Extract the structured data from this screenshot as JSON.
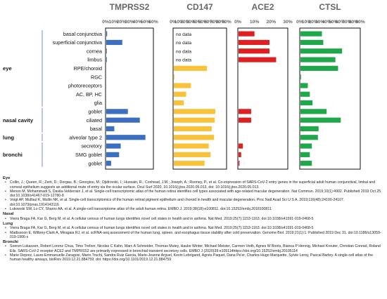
{
  "chart_data": [
    {
      "type": "bar",
      "title": "TMPRSS2",
      "xlim": [
        0,
        60
      ],
      "ticks": [
        "0%",
        "10%",
        "20%",
        "30%",
        "40%",
        "50%",
        "60%"
      ],
      "color": "#3c6fc0",
      "categories": [
        "basal conjunctiva",
        "superficial conjunctiva",
        "cornea",
        "limbus",
        "RPE/choroid",
        "RGC",
        "photoreceptors",
        "AC, BP, HC",
        "glia",
        "goblet",
        "ciliated",
        "basal",
        "alveolar type 2",
        "secretory",
        "SMG goblet",
        "goblet"
      ],
      "values": [
        2,
        21,
        1,
        1,
        0,
        0,
        0,
        0,
        0,
        28,
        43,
        11,
        50,
        19,
        17,
        7
      ],
      "labels": [
        "",
        "",
        "",
        "",
        "",
        "",
        "",
        "",
        "",
        "",
        "",
        "",
        "",
        "",
        "",
        ""
      ]
    },
    {
      "type": "bar",
      "title": "CD147",
      "xlim": [
        0,
        90
      ],
      "ticks": [
        "0%",
        "10%",
        "20%",
        "30%",
        "40%",
        "50%",
        "60%",
        "70%",
        "80%",
        "90%"
      ],
      "color": "#f8c23a",
      "categories": [
        "basal conjunctiva",
        "superficial conjunctiva",
        "cornea",
        "limbus",
        "RPE/choroid",
        "RGC",
        "photoreceptors",
        "AC, BP, HC",
        "glia",
        "goblet",
        "ciliated",
        "basal",
        "alveolar type 2",
        "secretory",
        "SMG goblet",
        "goblet"
      ],
      "values": [
        0,
        0,
        0,
        0,
        57,
        2,
        30,
        22,
        18,
        71,
        70,
        65,
        69,
        60,
        63,
        53
      ],
      "labels": [
        "no data",
        "no data",
        "no data",
        "no data",
        "",
        "",
        "",
        "",
        "",
        "",
        "",
        "",
        "",
        "",
        "",
        ""
      ]
    },
    {
      "type": "bar",
      "title": "ACE2",
      "xlim": [
        0,
        30
      ],
      "ticks": [
        "0%",
        "10%",
        "20%",
        "30%"
      ],
      "color": "#e02020",
      "categories": [
        "basal conjunctiva",
        "superficial conjunctiva",
        "cornea",
        "limbus",
        "RPE/choroid",
        "RGC",
        "photoreceptors",
        "AC, BP, HC",
        "glia",
        "goblet",
        "ciliated",
        "basal",
        "alveolar type 2",
        "secretory",
        "SMG goblet",
        "goblet"
      ],
      "values": [
        10,
        19,
        19,
        23,
        0,
        0,
        0,
        0,
        0,
        8,
        8,
        0,
        0,
        3,
        2,
        1
      ],
      "labels": [
        "",
        "",
        "",
        "",
        "",
        "",
        "",
        "",
        "",
        "",
        "",
        "",
        "",
        "",
        "",
        ""
      ]
    },
    {
      "type": "bar",
      "title": "CTSL",
      "xlim": [
        0,
        90
      ],
      "ticks": [
        "0%",
        "10%",
        "20%",
        "30%",
        "40%",
        "50%",
        "60%",
        "70%",
        "80%",
        "90%"
      ],
      "color": "#1ea84a",
      "categories": [
        "basal conjunctiva",
        "superficial conjunctiva",
        "cornea",
        "limbus",
        "RPE/choroid",
        "RGC",
        "photoreceptors",
        "AC, BP, HC",
        "glia",
        "goblet",
        "ciliated",
        "basal",
        "alveolar type 2",
        "secretory",
        "SMG goblet",
        "goblet"
      ],
      "values": [
        33,
        35,
        63,
        53,
        57,
        2,
        12,
        15,
        19,
        40,
        61,
        28,
        27,
        18,
        15,
        18
      ],
      "labels": [
        "",
        "",
        "",
        "",
        "",
        "",
        "",
        "",
        "",
        "",
        "",
        "",
        "",
        "",
        "",
        ""
      ]
    }
  ],
  "groups": [
    {
      "label": "eye",
      "rows": [
        0,
        8
      ]
    },
    {
      "label": "nasal cavity",
      "rows": [
        9,
        11
      ]
    },
    {
      "label": "lung",
      "rows": [
        12,
        12
      ]
    },
    {
      "label": "bronchi",
      "rows": [
        13,
        15
      ]
    }
  ],
  "refs": [
    {
      "section": "Eye",
      "items": [
        "Collin, J.; Queen, R.; Zerti, D.; Dorgau, B.; Georgiou, M.; Djidrovski, I.; Hussain, R.; Coxhead, J.M.; Joseph, A.; Rooney, P., et al. Co-expression of SARS-CoV-2 entry genes in the superficial adult human conjunctival, limbal and corneal epithelium suggests an additional route of entry via the ocular surface. Ocul Surf 2020, 10.1016/j.jtos.2020.05.013, doi: 10.1016/j.jtos.2020.05.013.",
        "Menon M, Mohammadi S, Davila-Velderrain J, et al. Single-cell transcriptomic atlas of the human retina identifies cell types associated with age-related macular degeneration. Nat Commun. 2019;10(1):4902. Published 2019 Oct 25. doi:10.1038/s41467-019-12780-8",
        "Voigt AP, Mulfaul K, Mullin NK, et al. Single-cell transcriptomics of the human retinal pigment epithelium and choroid in health and macular degeneration. Proc Natl Acad Sci U S A. 2019;116(48):24100-24107. doi:10.1073/pnas.1914143116",
        "Lukowski SW, Lo CY, Sharov AA, et al. A single-cell transcriptome atlas of the adult human retina. EMBO J. 2019;38(18):e100811. doi:10.15252/embj.2018100811"
      ]
    },
    {
      "section": "Nasal",
      "items": [
        "Vieira Braga FA, Kar G, Berg M, et al. A cellular census of human lungs identifies novel cell states in health and in asthma. Nat Med. 2019;25(7):1153-1163. doi:10.1038/s41591-019-0468-5"
      ]
    },
    {
      "section": "Lung",
      "items": [
        "Vieira Braga FA, Kar G, Berg M, et al. A cellular census of human lungs identifies novel cell states in health and in asthma. Nat Med. 2019;25(7):1153-1163. doi:10.1038/s41591-019-0468-5",
        "Madissoon E, Wilbrey-Clark A, Miragaia RJ, et al. scRNA-seq assessment of the human lung, spleen, and esophagus tissue stability after cold preservation. Genome Biol. 2019;21(1):1. Published 2019 Dec 31. doi:10.1186/s13059-019-1906-x"
      ]
    },
    {
      "section": "Bronchi",
      "items": [
        "Soeren Lukassen, Robert Lorenz Chua, Timo Trefzer, Nicolas C Kahn, Marc A Schneider, Thomas Muley, Hauke Winter, Michael Meister, Carmen Veith, Agnes W Boots, Bianca P Hennig, Michael Kreuter, Christian Conrad, Roland Eils. SARS-CoV-2 receptor ACE2 and TMPRSS2 are primarily expressed in bronchial transient secretory cells. EMBO J (2020)39:e105114https://doi.org/10.15252/embj.20105114",
        "Marie Deprez, Laure-Emmanuelle Zaragosi, Marin Truchi, Sandra Ruiz Garcia, Marie-Jeanne Arguel, Kevin Lebrigand, Agnès Paquet, Dana Pe'er, Charles-Hugo Marquette, Sylvie Leroy, Pascal Barbry. A single-cell atlas of the human healthy airways, bioRxiv 2019.12.21.884759; doi: https://doi.org/10.1101/2019.12.21.884759"
      ]
    }
  ]
}
